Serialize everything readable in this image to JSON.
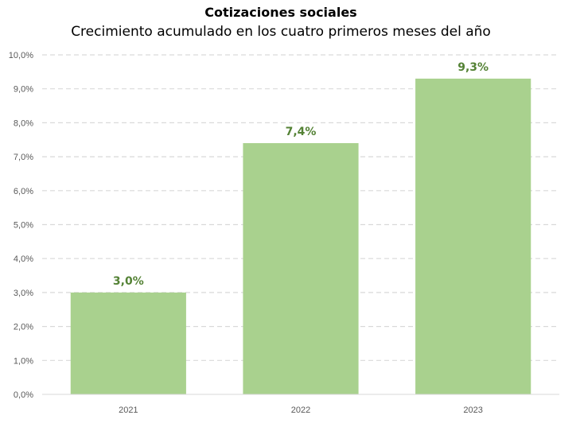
{
  "chart_data": {
    "type": "bar",
    "title": "Cotizaciones sociales",
    "subtitle": "Crecimiento acumulado en los cuatro primeros meses del año",
    "categories": [
      "2021",
      "2022",
      "2023"
    ],
    "values": [
      3.0,
      7.4,
      9.3
    ],
    "data_labels": [
      "3,0%",
      "7,4%",
      "9,3%"
    ],
    "ylim": [
      0,
      10
    ],
    "yticks": [
      "0,0%",
      "1,0%",
      "2,0%",
      "3,0%",
      "4,0%",
      "5,0%",
      "6,0%",
      "7,0%",
      "8,0%",
      "9,0%",
      "10,0%"
    ],
    "grid": true,
    "legend": "none",
    "bar_color": "#a9d18e",
    "label_color": "#548235",
    "grid_color": "#d9d9d9"
  }
}
